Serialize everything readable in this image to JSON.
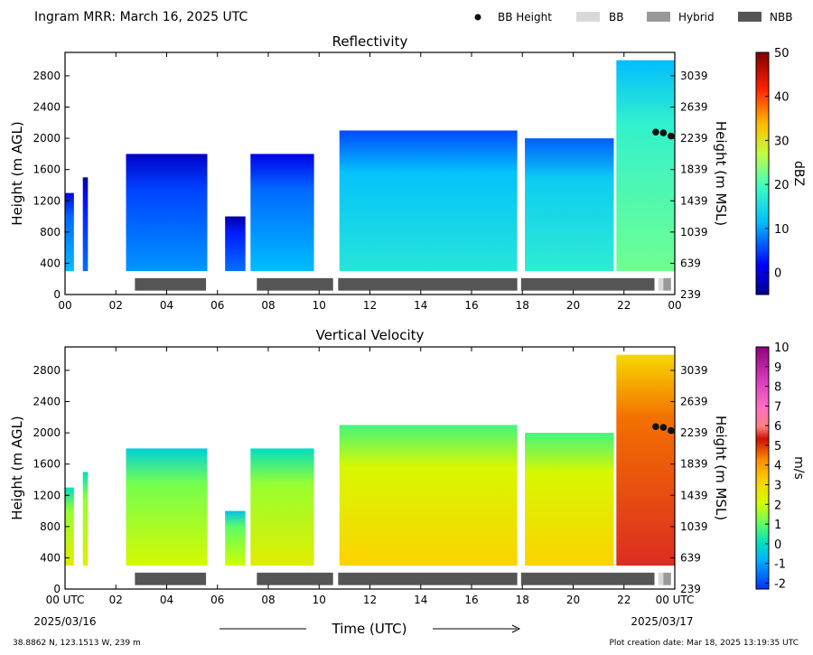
{
  "figure": {
    "title": "Ingram MRR:  March 16, 2025 UTC",
    "xlabel": "Time (UTC)",
    "footer_left": "38.8862 N, 123.1513 W, 239 m",
    "footer_right": "Plot creation date: Mar 18, 2025 13:19:35 UTC",
    "start_date": "2025/03/16",
    "end_date": "2025/03/17"
  },
  "legend": {
    "items": [
      {
        "label": "BB Height",
        "kind": "dot",
        "color": "#111111"
      },
      {
        "label": "BB",
        "kind": "patch",
        "color": "#d9d9d9"
      },
      {
        "label": "Hybrid",
        "kind": "patch",
        "color": "#999999"
      },
      {
        "label": "NBB",
        "kind": "patch",
        "color": "#555555"
      }
    ]
  },
  "chart_data": [
    {
      "type": "heatmap",
      "title": "Reflectivity",
      "xlabel": "",
      "ylabel": "Height (m AGL)",
      "y2label": "Height (m MSL)",
      "xticks": [
        "00",
        "02",
        "04",
        "06",
        "08",
        "10",
        "12",
        "14",
        "16",
        "18",
        "20",
        "22",
        "00"
      ],
      "xlim_hours": [
        0,
        24
      ],
      "ylim_m_agl": [
        0,
        3100
      ],
      "yticks_agl": [
        0,
        400,
        800,
        1200,
        1600,
        2000,
        2400,
        2800
      ],
      "yticks_msl": [
        239,
        639,
        1039,
        1439,
        1839,
        2239,
        2639,
        3039
      ],
      "colorbar": {
        "label": "dBZ",
        "range": [
          -5,
          50
        ],
        "ticks": [
          0,
          10,
          20,
          30,
          40,
          50
        ]
      },
      "echo_segments": [
        {
          "start": 0.0,
          "end": 0.35,
          "top": 1300,
          "value": 7
        },
        {
          "start": 0.7,
          "end": 0.9,
          "top": 1500,
          "value": 3
        },
        {
          "start": 2.4,
          "end": 5.6,
          "top": 1800,
          "value": 5
        },
        {
          "start": 6.3,
          "end": 7.1,
          "top": 1000,
          "value": 3
        },
        {
          "start": 7.3,
          "end": 9.8,
          "top": 1800,
          "value": 7
        },
        {
          "start": 10.8,
          "end": 17.8,
          "top": 2100,
          "value": 12
        },
        {
          "start": 18.1,
          "end": 21.6,
          "top": 2000,
          "value": 13
        },
        {
          "start": 21.7,
          "end": 24.0,
          "top": 3000,
          "value": 18
        }
      ],
      "bb_height_points": [
        {
          "x": 23.25,
          "y": 2080
        },
        {
          "x": 23.55,
          "y": 2070
        },
        {
          "x": 23.85,
          "y": 2030
        }
      ],
      "classification_segments": [
        {
          "start": 2.75,
          "end": 5.55,
          "class": "NBB"
        },
        {
          "start": 7.55,
          "end": 10.55,
          "class": "NBB"
        },
        {
          "start": 10.75,
          "end": 17.8,
          "class": "NBB"
        },
        {
          "start": 17.95,
          "end": 23.2,
          "class": "NBB"
        },
        {
          "start": 23.35,
          "end": 23.55,
          "class": "BB"
        },
        {
          "start": 23.55,
          "end": 23.85,
          "class": "Hybrid"
        }
      ]
    },
    {
      "type": "heatmap",
      "title": "Vertical Velocity",
      "xlabel": "Time (UTC)",
      "ylabel": "Height (m AGL)",
      "y2label": "Height (m MSL)",
      "xticks": [
        "00 UTC",
        "02",
        "04",
        "06",
        "08",
        "10",
        "12",
        "14",
        "16",
        "18",
        "20",
        "22",
        "00 UTC"
      ],
      "xlim_hours": [
        0,
        24
      ],
      "ylim_m_agl": [
        0,
        3100
      ],
      "yticks_agl": [
        0,
        400,
        800,
        1200,
        1600,
        2000,
        2400,
        2800
      ],
      "yticks_msl": [
        239,
        639,
        1039,
        1439,
        1839,
        2239,
        2639,
        3039
      ],
      "colorbar": {
        "label": "m/s",
        "range": [
          -2.3,
          10
        ],
        "ticks": [
          -2,
          -1,
          0,
          1,
          2,
          3,
          4,
          5,
          6,
          7,
          8,
          9,
          10
        ]
      },
      "echo_segments": [
        {
          "start": 0.0,
          "end": 0.35,
          "top": 1300,
          "value": 1.5
        },
        {
          "start": 0.7,
          "end": 0.9,
          "top": 1500,
          "value": 1.5
        },
        {
          "start": 2.4,
          "end": 5.6,
          "top": 1800,
          "value": 1.2
        },
        {
          "start": 6.3,
          "end": 7.1,
          "top": 1000,
          "value": 1.0
        },
        {
          "start": 7.3,
          "end": 9.8,
          "top": 1800,
          "value": 1.5
        },
        {
          "start": 10.8,
          "end": 17.8,
          "top": 2100,
          "value": 2.2
        },
        {
          "start": 18.1,
          "end": 21.6,
          "top": 2000,
          "value": 2.2
        },
        {
          "start": 21.7,
          "end": 24.0,
          "top": 3000,
          "value": 4.5
        }
      ],
      "bb_height_points": [
        {
          "x": 23.25,
          "y": 2080
        },
        {
          "x": 23.55,
          "y": 2070
        },
        {
          "x": 23.85,
          "y": 2030
        }
      ],
      "classification_segments": [
        {
          "start": 2.75,
          "end": 5.55,
          "class": "NBB"
        },
        {
          "start": 7.55,
          "end": 10.55,
          "class": "NBB"
        },
        {
          "start": 10.75,
          "end": 17.8,
          "class": "NBB"
        },
        {
          "start": 17.95,
          "end": 23.2,
          "class": "NBB"
        },
        {
          "start": 23.35,
          "end": 23.55,
          "class": "BB"
        },
        {
          "start": 23.55,
          "end": 23.85,
          "class": "Hybrid"
        }
      ]
    }
  ]
}
